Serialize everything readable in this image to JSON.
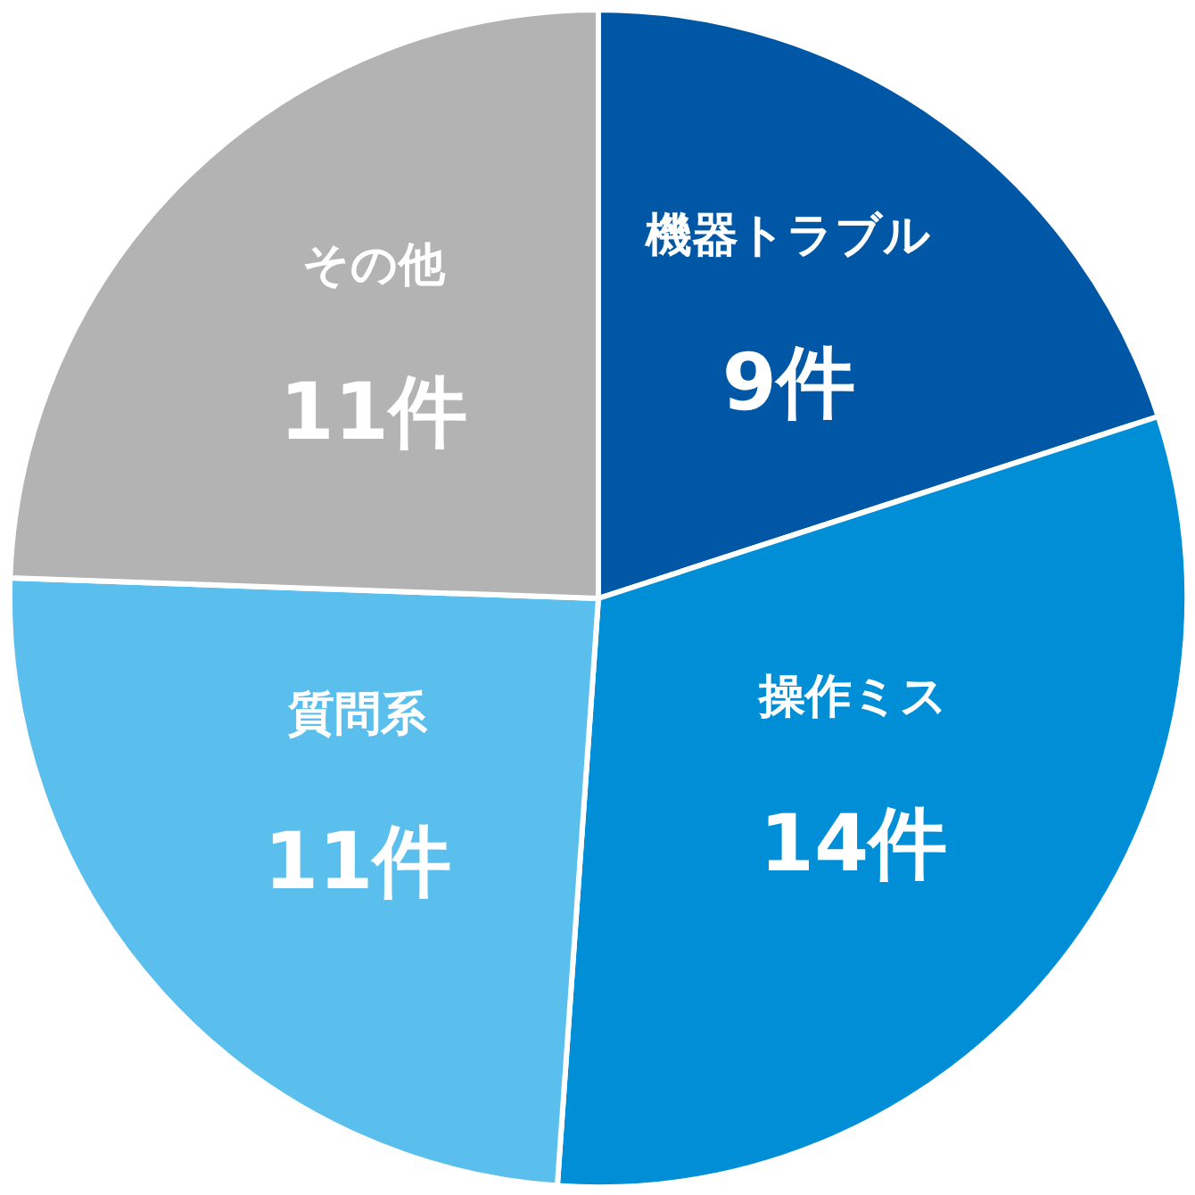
{
  "chart_data": {
    "type": "pie",
    "categories": [
      "機器トラブル",
      "操作ミス",
      "質問系",
      "その他"
    ],
    "values": [
      9,
      14,
      11,
      11
    ],
    "colors": [
      "#0057a6",
      "#008fd6",
      "#5bbfee",
      "#b3b3b3"
    ],
    "value_labels": [
      "9件",
      "14件",
      "11件",
      "11件"
    ]
  }
}
